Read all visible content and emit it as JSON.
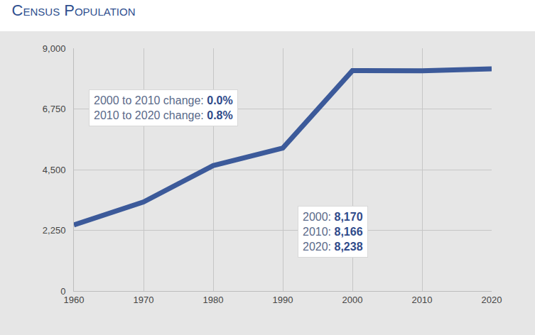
{
  "chart_data": {
    "type": "line",
    "title": "Census Population",
    "x": [
      1960,
      1970,
      1980,
      1990,
      2000,
      2010,
      2020
    ],
    "values": [
      2450,
      3300,
      4650,
      5300,
      8170,
      8166,
      8238
    ],
    "color": "#3c5a9a",
    "xlim": [
      1960,
      2020
    ],
    "xticks": [
      1960,
      1970,
      1980,
      1990,
      2000,
      2010,
      2020
    ],
    "ylim": [
      0,
      9000
    ],
    "yticks": [
      0,
      {
        "value": 2250,
        "label": "2,250"
      },
      {
        "value": 4500,
        "label": "4,500"
      },
      {
        "value": 6750,
        "label": "6,750"
      },
      {
        "value": 9000,
        "label": "9,000"
      }
    ],
    "grid": true,
    "annotations": [
      {
        "lines": [
          {
            "text": "2000 to 2010 change:",
            "value": "0.0%"
          },
          {
            "text": "2010 to 2020 change:",
            "value": "0.8%"
          }
        ]
      },
      {
        "lines": [
          {
            "text": "2000:",
            "value": "8,170"
          },
          {
            "text": "2010:",
            "value": "8,166"
          },
          {
            "text": "2020:",
            "value": "8,238"
          }
        ]
      }
    ]
  }
}
